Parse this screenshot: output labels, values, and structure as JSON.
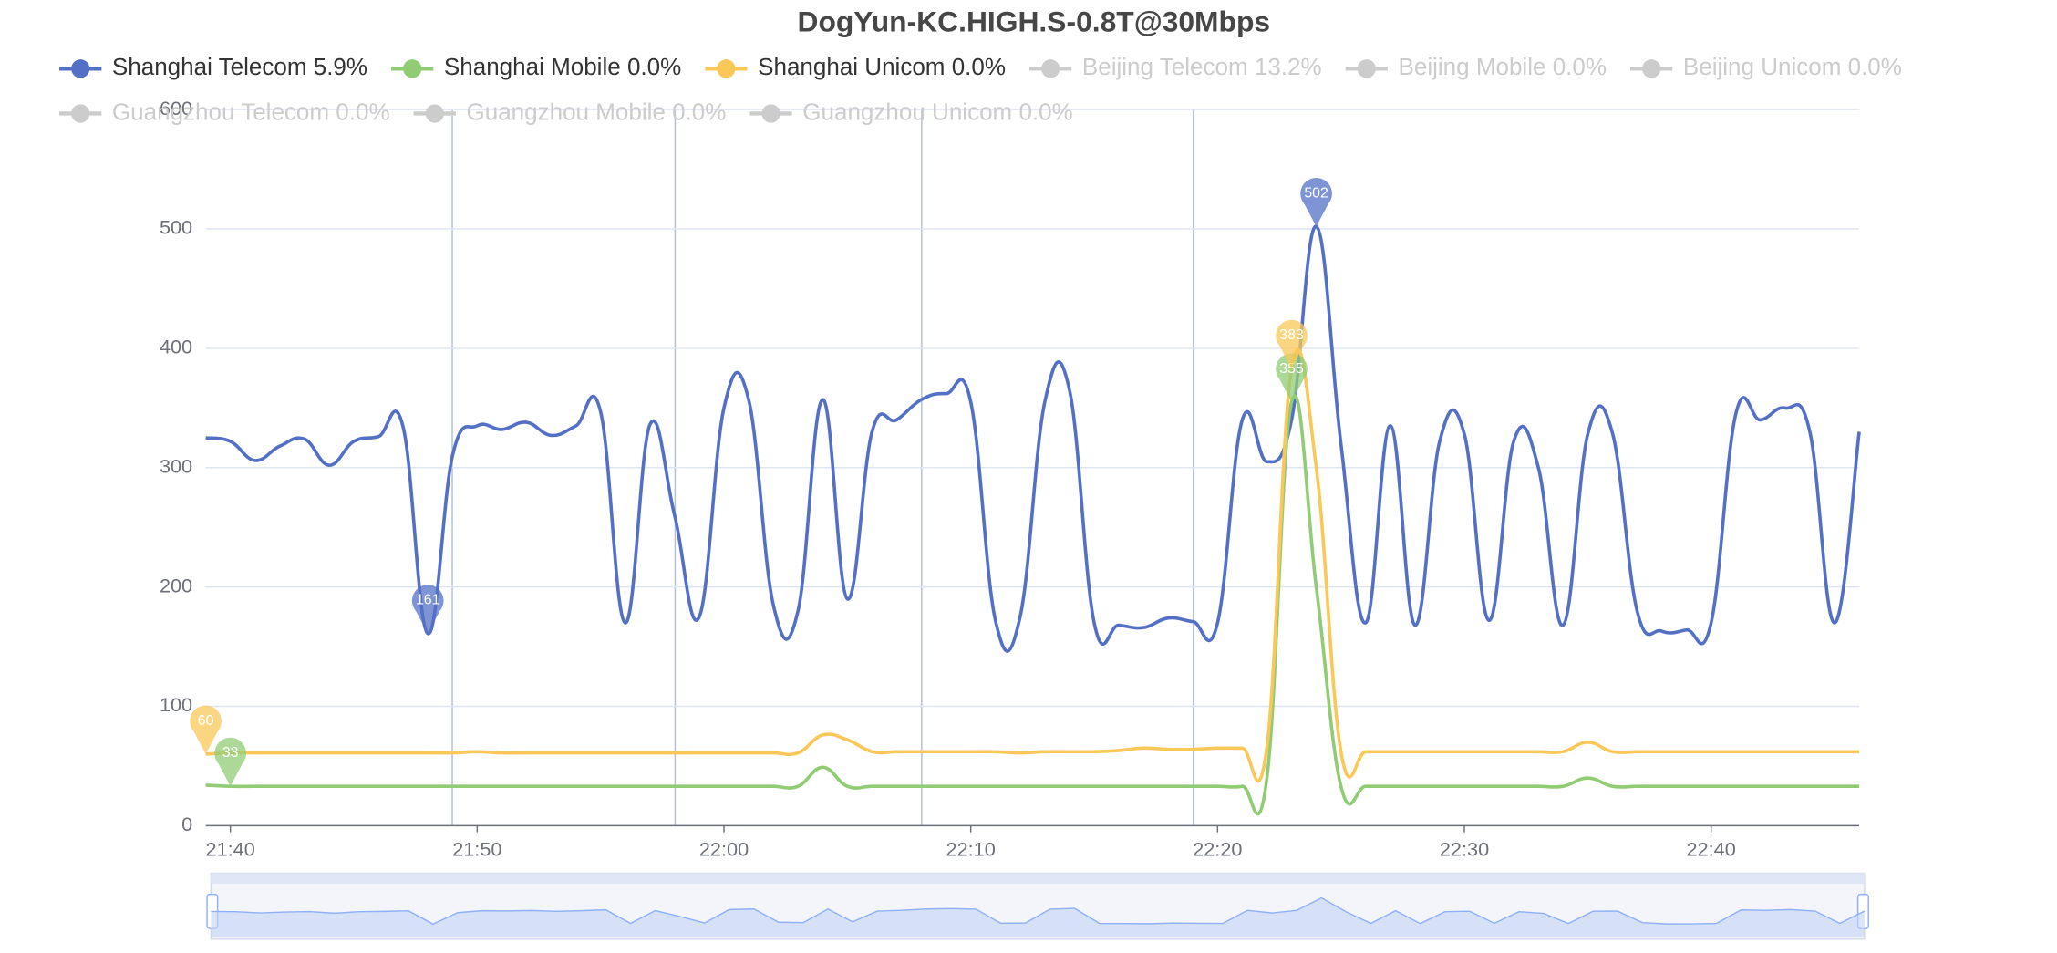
{
  "chart_data": {
    "type": "line",
    "title": "DogYun-KC.HIGH.S-0.8T@30Mbps",
    "x": [
      "21:39",
      "21:40",
      "21:41",
      "21:42",
      "21:43",
      "21:44",
      "21:45",
      "21:46",
      "21:47",
      "21:48",
      "21:49",
      "21:50",
      "21:51",
      "21:52",
      "21:53",
      "21:54",
      "21:55",
      "21:56",
      "21:57",
      "21:58",
      "21:59",
      "22:00",
      "22:01",
      "22:02",
      "22:03",
      "22:04",
      "22:05",
      "22:06",
      "22:07",
      "22:08",
      "22:09",
      "22:10",
      "22:11",
      "22:12",
      "22:13",
      "22:14",
      "22:15",
      "22:16",
      "22:17",
      "22:18",
      "22:19",
      "22:20",
      "22:21",
      "22:22",
      "22:23",
      "22:24",
      "22:25",
      "22:26",
      "22:27",
      "22:28",
      "22:29",
      "22:30",
      "22:31",
      "22:32",
      "22:33",
      "22:34",
      "22:35",
      "22:36",
      "22:37",
      "22:38",
      "22:39",
      "22:40",
      "22:41",
      "22:42",
      "22:43",
      "22:44",
      "22:45",
      "22:46"
    ],
    "xticks": [
      "21:40",
      "21:50",
      "22:00",
      "22:10",
      "22:20",
      "22:30",
      "22:40"
    ],
    "ylim": [
      0,
      600
    ],
    "yticks": [
      0,
      100,
      200,
      300,
      400,
      500,
      600
    ],
    "grid": true,
    "series": [
      {
        "name": "Shanghai Telecom 5.9%",
        "color": "#5470c6",
        "values": [
          325,
          322,
          306,
          318,
          324,
          302,
          322,
          326,
          334,
          161,
          310,
          335,
          332,
          338,
          327,
          335,
          347,
          170,
          336,
          260,
          175,
          350,
          357,
          185,
          180,
          357,
          190,
          330,
          340,
          357,
          362,
          355,
          172,
          175,
          355,
          365,
          170,
          168,
          166,
          174,
          171,
          170,
          340,
          305,
          340,
          502,
          320,
          170,
          335,
          168,
          322,
          328,
          172,
          322,
          300,
          168,
          328,
          329,
          180,
          163,
          164,
          170,
          345,
          340,
          350,
          330,
          170,
          330
        ]
      },
      {
        "name": "Shanghai Mobile 0.0%",
        "color": "#91cc75",
        "values": [
          34,
          33,
          33,
          33,
          33,
          33,
          33,
          33,
          33,
          33,
          33,
          33,
          33,
          33,
          33,
          33,
          33,
          33,
          33,
          33,
          33,
          33,
          33,
          33,
          33,
          49,
          33,
          33,
          33,
          33,
          33,
          33,
          33,
          33,
          33,
          33,
          33,
          33,
          33,
          33,
          33,
          33,
          33,
          40,
          355,
          200,
          33,
          33,
          33,
          33,
          33,
          33,
          33,
          33,
          33,
          33,
          40,
          33,
          33,
          33,
          33,
          33,
          33,
          33,
          33,
          33,
          33,
          33
        ]
      },
      {
        "name": "Shanghai Unicom 0.0%",
        "color": "#fac858",
        "values": [
          60,
          61,
          61,
          61,
          61,
          61,
          61,
          61,
          61,
          61,
          61,
          62,
          61,
          61,
          61,
          61,
          61,
          61,
          61,
          61,
          61,
          61,
          61,
          61,
          61,
          76,
          72,
          62,
          62,
          62,
          62,
          62,
          62,
          61,
          62,
          62,
          62,
          63,
          65,
          64,
          64,
          65,
          65,
          66,
          383,
          300,
          62,
          62,
          62,
          62,
          62,
          62,
          62,
          62,
          62,
          62,
          70,
          62,
          62,
          62,
          62,
          62,
          62,
          62,
          62,
          62,
          62,
          62
        ]
      },
      {
        "name": "Beijing Telecom 13.2%",
        "color": "#cccccc",
        "selected": false
      },
      {
        "name": "Beijing Mobile 0.0%",
        "color": "#cccccc",
        "selected": false
      },
      {
        "name": "Beijing Unicom 0.0%",
        "color": "#cccccc",
        "selected": false
      },
      {
        "name": "Guangzhou Telecom 0.0%",
        "color": "#cccccc",
        "selected": false
      },
      {
        "name": "Guangzhou Mobile 0.0%",
        "color": "#cccccc",
        "selected": false
      },
      {
        "name": "Guangzhou Unicom 0.0%",
        "color": "#cccccc",
        "selected": false
      }
    ]
  }
}
